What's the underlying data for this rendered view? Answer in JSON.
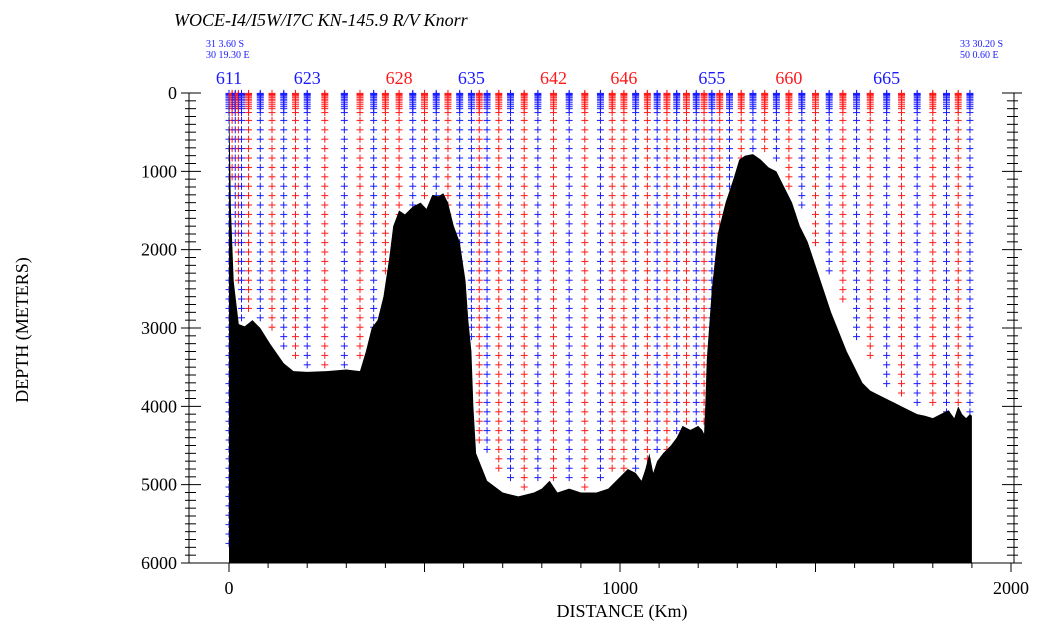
{
  "chart_data": {
    "type": "scatter",
    "title": "WOCE-I4/I5W/I7C KN-145.9 R/V Knorr",
    "xlabel": "DISTANCE (Km)",
    "ylabel": "DEPTH   (METERS)",
    "xlim": [
      0,
      2000
    ],
    "ylim": [
      0,
      6000
    ],
    "y_inverted": true,
    "x_ticks": [
      0,
      1000,
      2000
    ],
    "x_tick_labels": [
      "0",
      "1000",
      "2000"
    ],
    "y_ticks": [
      0,
      1000,
      2000,
      3000,
      4000,
      5000,
      6000
    ],
    "y_tick_labels": [
      "0",
      "1000",
      "2000",
      "3000",
      "4000",
      "5000",
      "6000"
    ],
    "start_position": {
      "lat": "31  3.60 S",
      "lon": "30 19.30 E"
    },
    "end_position": {
      "lat": "33 30.20 S",
      "lon": "50  0.60 E"
    },
    "colors": {
      "station_blue": "#1a1aff",
      "station_red": "#ff1a1a",
      "bathymetry": "#000000"
    },
    "labeled_stations": [
      {
        "name": "611",
        "x": 0,
        "color": "#1a1aff"
      },
      {
        "name": "623",
        "x": 200,
        "color": "#1a1aff"
      },
      {
        "name": "628",
        "x": 435,
        "color": "#ff1a1a"
      },
      {
        "name": "635",
        "x": 620,
        "color": "#1a1aff"
      },
      {
        "name": "642",
        "x": 830,
        "color": "#ff1a1a"
      },
      {
        "name": "646",
        "x": 1010,
        "color": "#ff1a1a"
      },
      {
        "name": "655",
        "x": 1235,
        "color": "#1a1aff"
      },
      {
        "name": "660",
        "x": 1432,
        "color": "#ff1a1a"
      },
      {
        "name": "665",
        "x": 1682,
        "color": "#1a1aff"
      }
    ],
    "stations": [
      {
        "x": 0,
        "depth": 5900,
        "color": "#1a1aff"
      },
      {
        "x": 8,
        "depth": 1200,
        "color": "#ff1a1a"
      },
      {
        "x": 16,
        "depth": 2000,
        "color": "#1a1aff"
      },
      {
        "x": 24,
        "depth": 2500,
        "color": "#ff1a1a"
      },
      {
        "x": 32,
        "depth": 2950,
        "color": "#1a1aff"
      },
      {
        "x": 50,
        "depth": 2900,
        "color": "#ff1a1a"
      },
      {
        "x": 80,
        "depth": 2950,
        "color": "#1a1aff"
      },
      {
        "x": 110,
        "depth": 3150,
        "color": "#ff1a1a"
      },
      {
        "x": 140,
        "depth": 3350,
        "color": "#1a1aff"
      },
      {
        "x": 170,
        "depth": 3500,
        "color": "#ff1a1a"
      },
      {
        "x": 200,
        "depth": 3550,
        "color": "#1a1aff"
      },
      {
        "x": 245,
        "depth": 3550,
        "color": "#ff1a1a"
      },
      {
        "x": 295,
        "depth": 3530,
        "color": "#1a1aff"
      },
      {
        "x": 335,
        "depth": 3520,
        "color": "#ff1a1a"
      },
      {
        "x": 370,
        "depth": 3050,
        "color": "#1a1aff"
      },
      {
        "x": 400,
        "depth": 2400,
        "color": "#ff1a1a"
      },
      {
        "x": 435,
        "depth": 1700,
        "color": "#ff1a1a"
      },
      {
        "x": 470,
        "depth": 1550,
        "color": "#1a1aff"
      },
      {
        "x": 500,
        "depth": 1400,
        "color": "#ff1a1a"
      },
      {
        "x": 530,
        "depth": 1380,
        "color": "#1a1aff"
      },
      {
        "x": 560,
        "depth": 1650,
        "color": "#ff1a1a"
      },
      {
        "x": 590,
        "depth": 2300,
        "color": "#1a1aff"
      },
      {
        "x": 620,
        "depth": 3200,
        "color": "#1a1aff"
      },
      {
        "x": 640,
        "depth": 4500,
        "color": "#ff1a1a"
      },
      {
        "x": 660,
        "depth": 4700,
        "color": "#1a1aff"
      },
      {
        "x": 690,
        "depth": 4950,
        "color": "#ff1a1a"
      },
      {
        "x": 720,
        "depth": 5050,
        "color": "#1a1aff"
      },
      {
        "x": 755,
        "depth": 5100,
        "color": "#ff1a1a"
      },
      {
        "x": 790,
        "depth": 5050,
        "color": "#1a1aff"
      },
      {
        "x": 830,
        "depth": 5000,
        "color": "#ff1a1a"
      },
      {
        "x": 870,
        "depth": 5080,
        "color": "#1a1aff"
      },
      {
        "x": 910,
        "depth": 5100,
        "color": "#ff1a1a"
      },
      {
        "x": 950,
        "depth": 5050,
        "color": "#1a1aff"
      },
      {
        "x": 980,
        "depth": 4950,
        "color": "#ff1a1a"
      },
      {
        "x": 1010,
        "depth": 4850,
        "color": "#ff1a1a"
      },
      {
        "x": 1040,
        "depth": 4900,
        "color": "#1a1aff"
      },
      {
        "x": 1070,
        "depth": 4800,
        "color": "#ff1a1a"
      },
      {
        "x": 1095,
        "depth": 4700,
        "color": "#1a1aff"
      },
      {
        "x": 1120,
        "depth": 4650,
        "color": "#ff1a1a"
      },
      {
        "x": 1145,
        "depth": 4400,
        "color": "#1a1aff"
      },
      {
        "x": 1170,
        "depth": 4300,
        "color": "#ff1a1a"
      },
      {
        "x": 1195,
        "depth": 4300,
        "color": "#1a1aff"
      },
      {
        "x": 1215,
        "depth": 4350,
        "color": "#ff1a1a"
      },
      {
        "x": 1235,
        "depth": 3400,
        "color": "#1a1aff"
      },
      {
        "x": 1255,
        "depth": 1900,
        "color": "#ff1a1a"
      },
      {
        "x": 1280,
        "depth": 1250,
        "color": "#1a1aff"
      },
      {
        "x": 1310,
        "depth": 900,
        "color": "#ff1a1a"
      },
      {
        "x": 1340,
        "depth": 800,
        "color": "#1a1aff"
      },
      {
        "x": 1370,
        "depth": 850,
        "color": "#ff1a1a"
      },
      {
        "x": 1400,
        "depth": 1000,
        "color": "#1a1aff"
      },
      {
        "x": 1432,
        "depth": 1300,
        "color": "#ff1a1a"
      },
      {
        "x": 1465,
        "depth": 1600,
        "color": "#1a1aff"
      },
      {
        "x": 1500,
        "depth": 2000,
        "color": "#ff1a1a"
      },
      {
        "x": 1535,
        "depth": 2400,
        "color": "#1a1aff"
      },
      {
        "x": 1570,
        "depth": 2800,
        "color": "#ff1a1a"
      },
      {
        "x": 1605,
        "depth": 3200,
        "color": "#1a1aff"
      },
      {
        "x": 1640,
        "depth": 3500,
        "color": "#ff1a1a"
      },
      {
        "x": 1682,
        "depth": 3800,
        "color": "#1a1aff"
      },
      {
        "x": 1720,
        "depth": 3950,
        "color": "#ff1a1a"
      },
      {
        "x": 1760,
        "depth": 4050,
        "color": "#1a1aff"
      },
      {
        "x": 1800,
        "depth": 4100,
        "color": "#ff1a1a"
      },
      {
        "x": 1835,
        "depth": 4150,
        "color": "#1a1aff"
      },
      {
        "x": 1865,
        "depth": 4100,
        "color": "#ff1a1a"
      },
      {
        "x": 1895,
        "depth": 4150,
        "color": "#1a1aff"
      }
    ],
    "bathymetry": {
      "x": [
        0,
        2,
        5,
        12,
        25,
        40,
        60,
        80,
        105,
        140,
        165,
        200,
        250,
        300,
        335,
        350,
        365,
        380,
        395,
        410,
        420,
        435,
        450,
        470,
        490,
        505,
        520,
        535,
        548,
        560,
        575,
        590,
        605,
        612,
        620,
        625,
        632,
        640,
        660,
        700,
        740,
        780,
        800,
        820,
        840,
        870,
        900,
        940,
        970,
        1000,
        1020,
        1040,
        1055,
        1065,
        1075,
        1085,
        1095,
        1110,
        1130,
        1145,
        1160,
        1180,
        1200,
        1210,
        1215,
        1218,
        1222,
        1235,
        1250,
        1270,
        1290,
        1305,
        1320,
        1340,
        1360,
        1380,
        1400,
        1420,
        1440,
        1460,
        1480,
        1500,
        1520,
        1540,
        1560,
        1580,
        1600,
        1620,
        1640,
        1660,
        1680,
        1700,
        1720,
        1740,
        1760,
        1780,
        1800,
        1820,
        1840,
        1855,
        1865,
        1875,
        1885,
        1895,
        1900
      ],
      "depth": [
        0,
        600,
        1500,
        2400,
        2950,
        2980,
        2900,
        3000,
        3200,
        3450,
        3550,
        3560,
        3550,
        3530,
        3550,
        3300,
        3000,
        2900,
        2600,
        2100,
        1700,
        1500,
        1550,
        1450,
        1400,
        1480,
        1300,
        1320,
        1280,
        1400,
        1700,
        1900,
        2400,
        2900,
        3300,
        4000,
        4600,
        4700,
        4950,
        5100,
        5150,
        5100,
        5050,
        4950,
        5100,
        5050,
        5100,
        5100,
        5050,
        4900,
        4800,
        4850,
        4950,
        4800,
        4600,
        4850,
        4700,
        4600,
        4500,
        4400,
        4250,
        4300,
        4250,
        4300,
        4350,
        4000,
        3400,
        2500,
        1800,
        1400,
        1100,
        850,
        800,
        780,
        850,
        950,
        1000,
        1200,
        1400,
        1700,
        1900,
        2200,
        2500,
        2800,
        3050,
        3300,
        3500,
        3700,
        3800,
        3850,
        3900,
        3950,
        4000,
        4050,
        4100,
        4120,
        4150,
        4100,
        4050,
        4150,
        4000,
        4100,
        4150,
        4100,
        4120
      ]
    }
  }
}
